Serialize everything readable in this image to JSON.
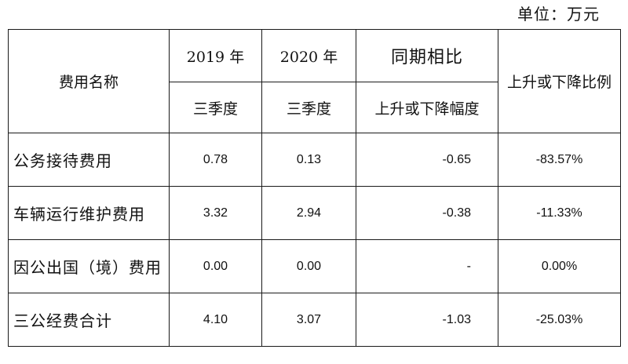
{
  "unit_label": "单位：万元",
  "header": {
    "name_col": "费用名称",
    "year_2019": "2019 年",
    "year_2020": "2020 年",
    "compare_group": "同期相比",
    "quarter_2019": "三季度",
    "quarter_2020": "三季度",
    "change_amount": "上升或下降幅度",
    "change_ratio": "上升或下降比例"
  },
  "rows": [
    {
      "name": "公务接待费用",
      "v2019": "0.78",
      "v2020": "0.13",
      "change": "-0.65",
      "ratio": "-83.57%"
    },
    {
      "name": "车辆运行维护费用",
      "v2019": "3.32",
      "v2020": "2.94",
      "change": "-0.38",
      "ratio": "-11.33%"
    },
    {
      "name": "因公出国（境）费用",
      "v2019": "0.00",
      "v2020": "0.00",
      "change": "-",
      "ratio": "0.00%"
    },
    {
      "name": "三公经费合计",
      "v2019": "4.10",
      "v2020": "3.07",
      "change": "-1.03",
      "ratio": "-25.03%"
    }
  ]
}
